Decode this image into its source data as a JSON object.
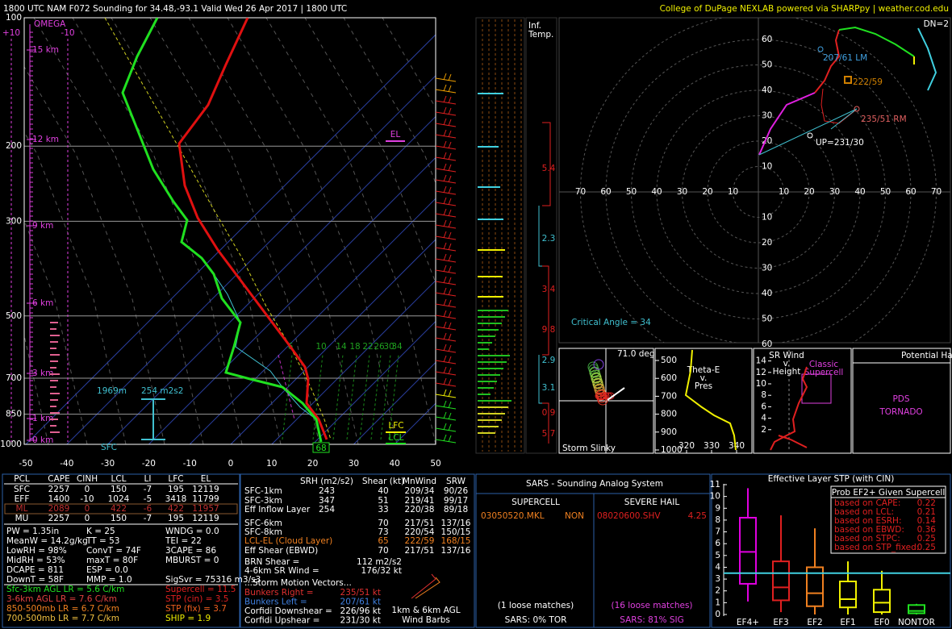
{
  "header": {
    "title": "1800 UTC NAM F072 Sounding for 34.48,-93.1  Valid  Wed 26 Apr 2017 | 1800 UTC",
    "credit": "College of DuPage NEXLAB powered via SHARPpy | weather.cod.edu"
  },
  "skewt": {
    "pressure_ticks": [
      100,
      200,
      300,
      500,
      700,
      850,
      1000
    ],
    "temp_ticks": [
      -50,
      -40,
      -30,
      -20,
      -10,
      0,
      10,
      20,
      30,
      40,
      50
    ],
    "height_labels": [
      "15 km",
      "12 km",
      "9 km",
      "6 km",
      "3 km",
      "1 km",
      "0 km"
    ],
    "omega": "OMEGA",
    "omega_plus": "+10",
    "omega_minus": "-10",
    "el": "EL",
    "lfc": "LFC",
    "lcl": "LCL",
    "sfc": "SFC",
    "eff_base": "1969m",
    "eff_srh": "254 m2s2",
    "sfc_temp": "68",
    "mixing_ratios": [
      6,
      10,
      14,
      18,
      22,
      26,
      30,
      34
    ]
  },
  "inferred_temp": {
    "title_lines": [
      "Inf.",
      "Temp."
    ],
    "values": [
      "5.4",
      "2.3",
      "3.4",
      "9.8",
      "2.9",
      "3.1",
      "0.9",
      "5.7"
    ]
  },
  "hodograph": {
    "rings": [
      10,
      20,
      30,
      40,
      50,
      60,
      70
    ],
    "lm": "207/61 LM",
    "mean": "222/59",
    "rm": "235/51 RM",
    "up": "UP=231/30",
    "dn": "DN=2",
    "critical": "Critical Angle = 34"
  },
  "slinky": {
    "angle": "71.0 deg",
    "label": "Storm Slinky"
  },
  "theta": {
    "title_lines": [
      "Theta-E",
      "v.",
      "Pres"
    ],
    "yticks": [
      500,
      600,
      700,
      800,
      900,
      1000
    ],
    "xticks": [
      320,
      330,
      340
    ]
  },
  "srwind": {
    "title_lines": [
      "SR Wind",
      "v.",
      "Height"
    ],
    "yticks": [
      2,
      4,
      6,
      8,
      10,
      12,
      14
    ],
    "supercell": [
      "Classic",
      "Supercell"
    ]
  },
  "hazard": {
    "title": "Potential Hazard Type",
    "type": [
      "PDS",
      "TORNADO"
    ]
  },
  "parcels": {
    "header": [
      "PCL",
      "CAPE",
      "CINH",
      "LCL",
      "LI",
      "LFC",
      "EL"
    ],
    "rows": [
      [
        "SFC",
        "2257",
        "0",
        "150",
        "-7",
        "195",
        "12119"
      ],
      [
        "EFF",
        "1400",
        "-10",
        "1024",
        "-5",
        "3418",
        "11799"
      ],
      [
        "ML",
        "2089",
        "0",
        "422",
        "-6",
        "422",
        "11957"
      ],
      [
        "MU",
        "2257",
        "0",
        "150",
        "-7",
        "195",
        "12119"
      ]
    ]
  },
  "indices": [
    [
      "PW = 1.35in",
      "K = 25",
      "WNDG = 0.0"
    ],
    [
      "MeanW = 14.2g/kg",
      "TT = 53",
      "TEI = 22"
    ],
    [
      "LowRH = 98%",
      "ConvT = 74F",
      "3CAPE = 86"
    ],
    [
      "MidRH = 53%",
      "maxT = 80F",
      "MBURST = 0"
    ],
    [
      "DCAPE = 811",
      "ESP = 0.0"
    ],
    [
      "DownT = 58F",
      "MMP = 1.0",
      "SigSvr = 75316 m3/s3"
    ]
  ],
  "lapse_rates": [
    "Sfc-3km AGL LR = 5.6 C/km",
    "3-6km AGL LR = 7.6 C/km",
    "850-500mb LR = 6.7 C/km",
    "700-500mb LR = 7.7 C/km"
  ],
  "composites": [
    "Supercell = 11.5",
    "STP (cin) = 3.5",
    "STP (fix) = 3.7",
    "SHIP = 1.9"
  ],
  "kinematics": {
    "header": [
      "SRH (m2/s2)",
      "Shear (kt)",
      "MnWind",
      "SRW"
    ],
    "rows": [
      [
        "SFC-1km",
        "243",
        "40",
        "209/34",
        "90/26"
      ],
      [
        "SFC-3km",
        "347",
        "51",
        "219/41",
        "99/17"
      ],
      [
        "Eff Inflow Layer",
        "254",
        "33",
        "220/38",
        "89/18"
      ],
      [
        "SFC-6km",
        null,
        "70",
        "217/51",
        "137/16"
      ],
      [
        "SFC-8km",
        null,
        "73",
        "220/54",
        "150/15"
      ],
      [
        "LCL-EL (Cloud Layer)",
        null,
        "65",
        "222/59",
        "168/15"
      ],
      [
        "Eff Shear (EBWD)",
        null,
        "70",
        "217/51",
        "137/16"
      ]
    ],
    "brn": [
      [
        "BRN Shear =",
        "112 m2/s2"
      ],
      [
        "4-6km SR Wind =",
        "176/32 kt"
      ]
    ],
    "motion_title": "...Storm Motion Vectors...",
    "motion": [
      [
        "Bunkers Right =",
        "235/51 kt"
      ],
      [
        "Bunkers Left =",
        "207/61 kt"
      ],
      [
        "Corfidi Downshear =",
        "226/96 kt"
      ],
      [
        "Corfidi Upshear =",
        "231/30 kt"
      ]
    ],
    "barbs": [
      "1km & 6km AGL",
      "Wind Barbs"
    ]
  },
  "sars": {
    "title": "SARS - Sounding Analog System",
    "supercell": {
      "title": "SUPERCELL",
      "match": "03050520.MKL",
      "type": "NON",
      "loose": "(1 loose matches)",
      "summary": "SARS: 0% TOR"
    },
    "hail": {
      "title": "SEVERE HAIL",
      "match": "08020600.SHV",
      "size": "4.25",
      "loose": "(16 loose matches)",
      "summary": "SARS: 81% SIG"
    }
  },
  "stp": {
    "title": "Effective Layer STP (with CIN)",
    "ylim": [
      0,
      11
    ],
    "yticks": [
      0,
      1,
      2,
      3,
      4,
      5,
      6,
      7,
      8,
      9,
      10,
      11
    ],
    "current": 3.5,
    "categories": [
      "EF4+",
      "EF3",
      "EF2",
      "EF1",
      "EF0",
      "NONTOR"
    ],
    "colors": [
      "#e000e0",
      "#e02020",
      "#f08020",
      "#f0f000",
      "#f0f000",
      "#20e020"
    ],
    "boxes": [
      [
        1.1,
        2.6,
        5.3,
        8.2,
        10.7
      ],
      [
        0.2,
        1.2,
        2.3,
        4.5,
        8.4
      ],
      [
        0,
        0.7,
        1.8,
        4.0,
        7.3
      ],
      [
        0,
        0.6,
        1.3,
        2.8,
        4.5
      ],
      [
        0,
        0.2,
        1.0,
        2.1,
        3.7
      ],
      [
        0,
        0.1,
        0.3,
        0.8,
        0.9
      ]
    ],
    "prob_title": "Prob EF2+ Given Supercell",
    "prob": [
      [
        "based on CAPE:",
        "0.22"
      ],
      [
        "based on LCL:",
        "0.21"
      ],
      [
        "based on ESRH:",
        "0.14"
      ],
      [
        "based on EBWD:",
        "0.36"
      ],
      [
        "based on STPC:",
        "0.25"
      ],
      [
        "based on STP_fixed:",
        "0.25"
      ]
    ]
  }
}
